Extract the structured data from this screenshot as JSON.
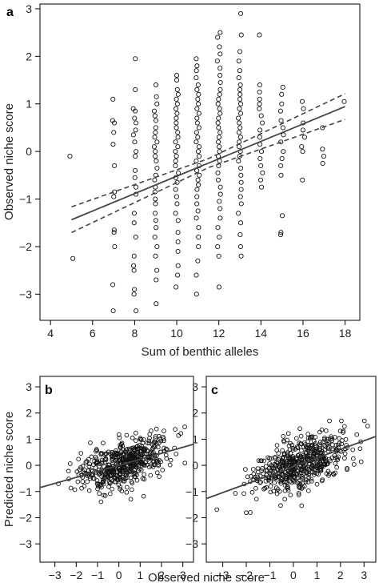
{
  "chart_data": [
    {
      "panel": "a",
      "type": "scatter",
      "xlabel": "Sum of benthic alleles",
      "ylabel": "Observed niche score",
      "xlim": [
        3.5,
        18.7
      ],
      "ylim": [
        -3.55,
        3.1
      ],
      "xticks": [
        4,
        6,
        8,
        10,
        12,
        14,
        16,
        18
      ],
      "yticks": [
        -3,
        -2,
        -1,
        0,
        1,
        2,
        3
      ],
      "grid": false,
      "fit_line": {
        "intercept": -2.35,
        "slope": 0.183,
        "ci_width": 0.27,
        "x_range": [
          5,
          18
        ]
      },
      "points": [
        [
          5,
          -0.1
        ],
        [
          5,
          -2.25
        ],
        [
          7,
          1.1
        ],
        [
          7,
          0.65
        ],
        [
          7,
          0.6
        ],
        [
          7,
          0.4
        ],
        [
          7,
          0.15
        ],
        [
          7,
          -0.3
        ],
        [
          7,
          -0.85
        ],
        [
          7,
          -0.95
        ],
        [
          7,
          -1.65
        ],
        [
          7,
          -1.7
        ],
        [
          7,
          -2.0
        ],
        [
          7,
          -2.8
        ],
        [
          7,
          -3.35
        ],
        [
          8,
          1.95
        ],
        [
          8,
          1.3
        ],
        [
          8,
          0.9
        ],
        [
          8,
          0.85
        ],
        [
          8,
          0.7
        ],
        [
          8,
          0.6
        ],
        [
          8,
          0.45
        ],
        [
          8,
          0.35
        ],
        [
          8,
          0.2
        ],
        [
          8,
          0.0
        ],
        [
          8,
          -0.1
        ],
        [
          8,
          -0.4
        ],
        [
          8,
          -0.55
        ],
        [
          8,
          -0.75
        ],
        [
          8,
          -0.9
        ],
        [
          8,
          -1.3
        ],
        [
          8,
          -1.5
        ],
        [
          8,
          -1.8
        ],
        [
          8,
          -2.2
        ],
        [
          8,
          -2.4
        ],
        [
          8,
          -2.5
        ],
        [
          8,
          -2.9
        ],
        [
          8,
          -3.0
        ],
        [
          8,
          -3.35
        ],
        [
          9,
          1.4
        ],
        [
          9,
          1.15
        ],
        [
          9,
          1.0
        ],
        [
          9,
          0.85
        ],
        [
          9,
          0.75
        ],
        [
          9,
          0.65
        ],
        [
          9,
          0.5
        ],
        [
          9,
          0.4
        ],
        [
          9,
          0.3
        ],
        [
          9,
          0.2
        ],
        [
          9,
          0.1
        ],
        [
          9,
          0.0
        ],
        [
          9,
          -0.1
        ],
        [
          9,
          -0.2
        ],
        [
          9,
          -0.35
        ],
        [
          9,
          -0.5
        ],
        [
          9,
          -0.6
        ],
        [
          9,
          -0.75
        ],
        [
          9,
          -0.85
        ],
        [
          9,
          -1.0
        ],
        [
          9,
          -1.1
        ],
        [
          9,
          -1.3
        ],
        [
          9,
          -1.45
        ],
        [
          9,
          -1.6
        ],
        [
          9,
          -1.8
        ],
        [
          9,
          -2.0
        ],
        [
          9,
          -2.2
        ],
        [
          9,
          -2.5
        ],
        [
          9,
          -2.7
        ],
        [
          9,
          -3.2
        ],
        [
          10,
          1.6
        ],
        [
          10,
          1.5
        ],
        [
          10,
          1.3
        ],
        [
          10,
          1.2
        ],
        [
          10,
          1.1
        ],
        [
          10,
          1.0
        ],
        [
          10,
          0.9
        ],
        [
          10,
          0.8
        ],
        [
          10,
          0.7
        ],
        [
          10,
          0.6
        ],
        [
          10,
          0.5
        ],
        [
          10,
          0.4
        ],
        [
          10,
          0.3
        ],
        [
          10,
          0.2
        ],
        [
          10,
          0.1
        ],
        [
          10,
          0.0
        ],
        [
          10,
          -0.1
        ],
        [
          10,
          -0.2
        ],
        [
          10,
          -0.3
        ],
        [
          10,
          -0.45
        ],
        [
          10,
          -0.55
        ],
        [
          10,
          -0.65
        ],
        [
          10,
          -0.8
        ],
        [
          10,
          -0.95
        ],
        [
          10,
          -1.1
        ],
        [
          10,
          -1.3
        ],
        [
          10,
          -1.45
        ],
        [
          10,
          -1.7
        ],
        [
          10,
          -1.9
        ],
        [
          10,
          -2.1
        ],
        [
          10,
          -2.4
        ],
        [
          10,
          -2.6
        ],
        [
          10,
          -2.85
        ],
        [
          11,
          1.95
        ],
        [
          11,
          1.8
        ],
        [
          11,
          1.7
        ],
        [
          11,
          1.55
        ],
        [
          11,
          1.4
        ],
        [
          11,
          1.3
        ],
        [
          11,
          1.2
        ],
        [
          11,
          1.1
        ],
        [
          11,
          1.0
        ],
        [
          11,
          0.9
        ],
        [
          11,
          0.8
        ],
        [
          11,
          0.7
        ],
        [
          11,
          0.6
        ],
        [
          11,
          0.5
        ],
        [
          11,
          0.4
        ],
        [
          11,
          0.3
        ],
        [
          11,
          0.2
        ],
        [
          11,
          0.1
        ],
        [
          11,
          0.0
        ],
        [
          11,
          -0.1
        ],
        [
          11,
          -0.2
        ],
        [
          11,
          -0.3
        ],
        [
          11,
          -0.4
        ],
        [
          11,
          -0.5
        ],
        [
          11,
          -0.6
        ],
        [
          11,
          -0.7
        ],
        [
          11,
          -0.8
        ],
        [
          11,
          -0.95
        ],
        [
          11,
          -1.1
        ],
        [
          11,
          -1.25
        ],
        [
          11,
          -1.4
        ],
        [
          11,
          -1.6
        ],
        [
          11,
          -1.8
        ],
        [
          11,
          -2.0
        ],
        [
          11,
          -2.3
        ],
        [
          11,
          -2.6
        ],
        [
          11,
          -3.0
        ],
        [
          12,
          2.5
        ],
        [
          12,
          2.4
        ],
        [
          12,
          2.2
        ],
        [
          12,
          2.05
        ],
        [
          12,
          1.9
        ],
        [
          12,
          1.75
        ],
        [
          12,
          1.6
        ],
        [
          12,
          1.45
        ],
        [
          12,
          1.3
        ],
        [
          12,
          1.2
        ],
        [
          12,
          1.1
        ],
        [
          12,
          1.0
        ],
        [
          12,
          0.9
        ],
        [
          12,
          0.8
        ],
        [
          12,
          0.7
        ],
        [
          12,
          0.6
        ],
        [
          12,
          0.5
        ],
        [
          12,
          0.4
        ],
        [
          12,
          0.3
        ],
        [
          12,
          0.2
        ],
        [
          12,
          0.1
        ],
        [
          12,
          0.0
        ],
        [
          12,
          -0.1
        ],
        [
          12,
          -0.2
        ],
        [
          12,
          -0.3
        ],
        [
          12,
          -0.45
        ],
        [
          12,
          -0.6
        ],
        [
          12,
          -0.75
        ],
        [
          12,
          -0.9
        ],
        [
          12,
          -1.05
        ],
        [
          12,
          -1.2
        ],
        [
          12,
          -1.4
        ],
        [
          12,
          -1.6
        ],
        [
          12,
          -1.8
        ],
        [
          12,
          -2.0
        ],
        [
          12,
          -2.2
        ],
        [
          12,
          -2.85
        ],
        [
          13,
          2.9
        ],
        [
          13,
          2.45
        ],
        [
          13,
          2.1
        ],
        [
          13,
          1.9
        ],
        [
          13,
          1.7
        ],
        [
          13,
          1.55
        ],
        [
          13,
          1.4
        ],
        [
          13,
          1.3
        ],
        [
          13,
          1.2
        ],
        [
          13,
          1.1
        ],
        [
          13,
          1.0
        ],
        [
          13,
          0.9
        ],
        [
          13,
          0.8
        ],
        [
          13,
          0.7
        ],
        [
          13,
          0.6
        ],
        [
          13,
          0.5
        ],
        [
          13,
          0.4
        ],
        [
          13,
          0.3
        ],
        [
          13,
          0.2
        ],
        [
          13,
          0.1
        ],
        [
          13,
          0.0
        ],
        [
          13,
          -0.1
        ],
        [
          13,
          -0.2
        ],
        [
          13,
          -0.35
        ],
        [
          13,
          -0.5
        ],
        [
          13,
          -0.65
        ],
        [
          13,
          -0.8
        ],
        [
          13,
          -0.95
        ],
        [
          13,
          -1.1
        ],
        [
          13,
          -1.3
        ],
        [
          13,
          -1.5
        ],
        [
          13,
          -1.75
        ],
        [
          13,
          -2.0
        ],
        [
          13,
          -2.2
        ],
        [
          14,
          2.45
        ],
        [
          14,
          1.4
        ],
        [
          14,
          1.25
        ],
        [
          14,
          1.1
        ],
        [
          14,
          1.0
        ],
        [
          14,
          0.9
        ],
        [
          14,
          0.75
        ],
        [
          14,
          0.6
        ],
        [
          14,
          0.45
        ],
        [
          14,
          0.3
        ],
        [
          14,
          0.15
        ],
        [
          14,
          0.0
        ],
        [
          14,
          -0.15
        ],
        [
          14,
          -0.3
        ],
        [
          14,
          -0.45
        ],
        [
          14,
          -0.6
        ],
        [
          14,
          -0.75
        ],
        [
          15,
          1.35
        ],
        [
          15,
          1.2
        ],
        [
          15,
          1.0
        ],
        [
          15,
          0.85
        ],
        [
          15,
          0.65
        ],
        [
          15,
          0.5
        ],
        [
          15,
          0.35
        ],
        [
          15,
          0.2
        ],
        [
          15,
          0.0
        ],
        [
          15,
          -0.15
        ],
        [
          15,
          -0.3
        ],
        [
          15,
          -0.5
        ],
        [
          15,
          -1.35
        ],
        [
          15,
          -1.7
        ],
        [
          15,
          -1.75
        ],
        [
          16,
          1.05
        ],
        [
          16,
          0.9
        ],
        [
          16,
          0.6
        ],
        [
          16,
          0.45
        ],
        [
          16,
          0.3
        ],
        [
          16,
          0.1
        ],
        [
          16,
          0.0
        ],
        [
          16,
          -0.6
        ],
        [
          17,
          0.5
        ],
        [
          17,
          0.05
        ],
        [
          17,
          -0.1
        ],
        [
          17,
          -0.25
        ],
        [
          18,
          1.05
        ]
      ]
    },
    {
      "panel": "b",
      "type": "scatter",
      "xlabel": "Observed niche score",
      "ylabel": "Predicted niche score",
      "xlim": [
        -3.7,
        3.5
      ],
      "ylim": [
        -3.7,
        3.4
      ],
      "xticks": [
        -3,
        -2,
        -1,
        0,
        1,
        2,
        3
      ],
      "yticks": [
        -3,
        -2,
        -1,
        0,
        1,
        2,
        3
      ],
      "grid": false,
      "fit_line": {
        "intercept": 0.0,
        "slope": 0.23
      },
      "n_points": 520,
      "points_note": "cloud centered near (0.3, 0.0), spread sd_x 1.05, sd_y 0.45"
    },
    {
      "panel": "c",
      "type": "scatter",
      "xlabel": "Observed niche score",
      "ylabel": "",
      "xlim": [
        -3.7,
        3.5
      ],
      "ylim": [
        -3.7,
        3.4
      ],
      "xticks": [
        -3,
        -2,
        -1,
        0,
        1,
        2,
        3
      ],
      "yticks": [
        -3,
        -2,
        -1,
        0,
        1,
        2,
        3
      ],
      "grid": false,
      "fit_line": {
        "intercept": -0.05,
        "slope": 0.33
      },
      "n_points": 520,
      "points_note": "cloud centered near (0.3, 0.05), spread sd_x 1.05, sd_y 0.55"
    }
  ]
}
